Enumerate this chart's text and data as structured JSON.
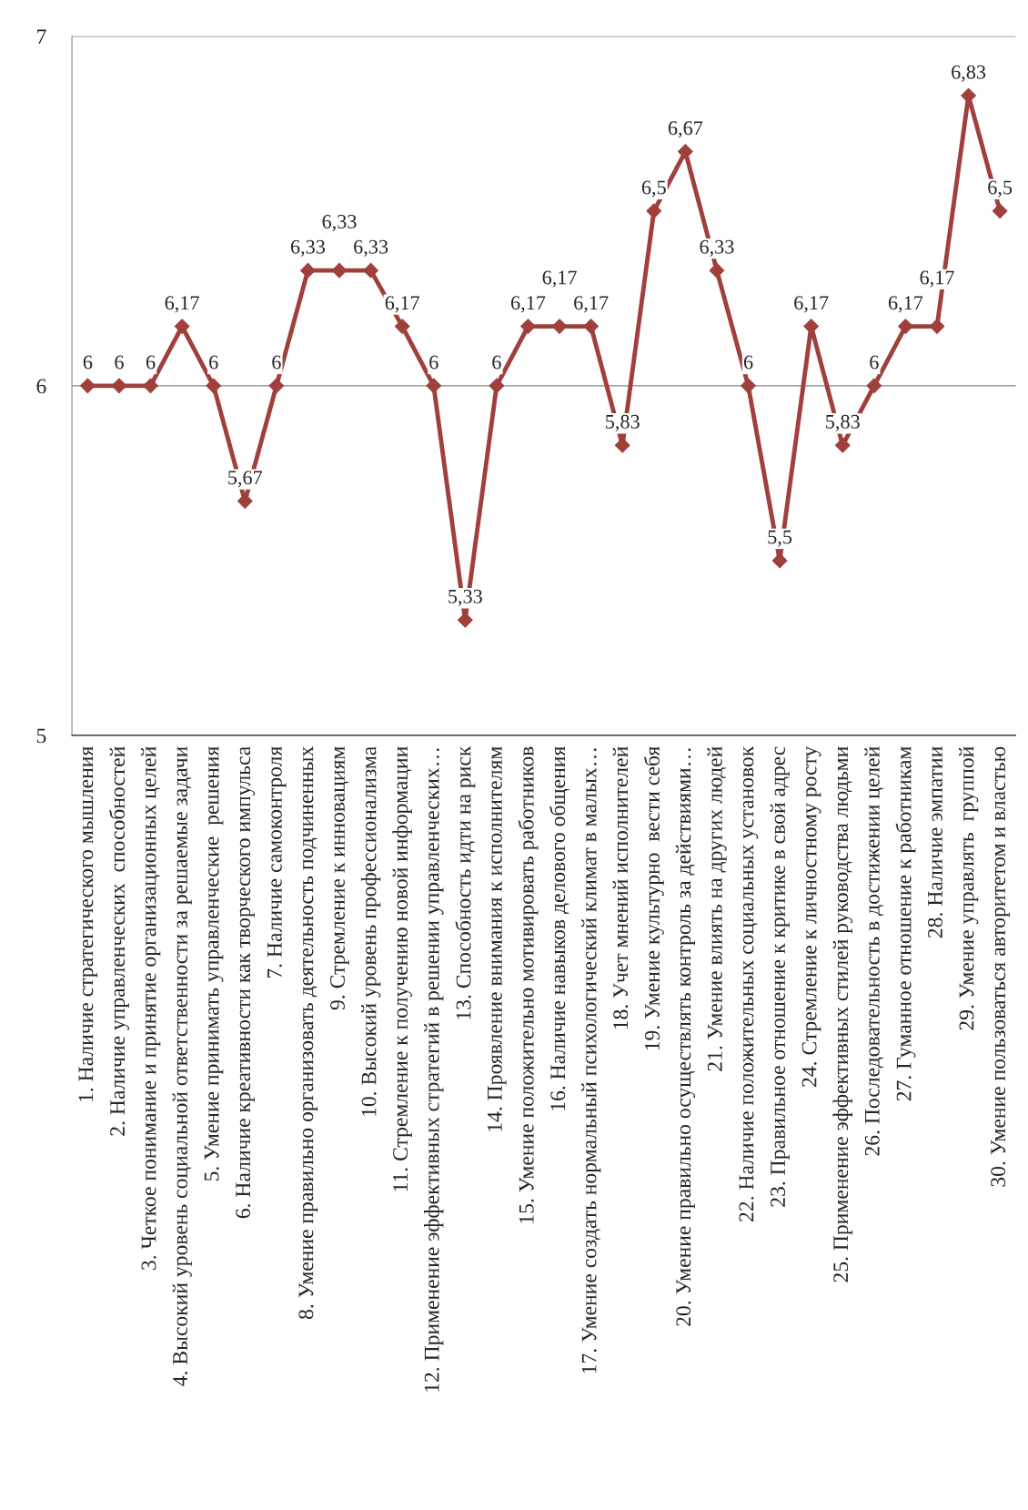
{
  "chart_data": {
    "type": "line",
    "categories": [
      "1. Наличие стратегического мышления",
      "2. Наличие управленческих  способностей",
      "3. Четкое понимание и принятие организационных целей",
      "4. Высокий уровень социальной ответственности за решаемые задачи",
      "5. Умение принимать управленческие  решения",
      "6. Наличие креативности как творческого импульса",
      "7. Наличие самоконтроля",
      "8. Умение правильно организовать деятельность подчиненных",
      "9. Стремление к инновациям",
      "10. Высокий уровень профессионализма",
      "11. Стремление к получению новой информации",
      "12. Применение эффективных стратегий в решении управленческих…",
      "13. Способность идти на риск",
      "14. Проявление внимания к исполнителям",
      "15. Умение положительно мотивировать работников",
      "16. Наличие навыков делового общения",
      "17. Умение создать нормальный психологический климат в малых…",
      "18. Учет мнений исполнителей",
      "19. Умение культурно  вести себя",
      "20. Умение правильно осуществлять контроль за действиями…",
      "21. Умение влиять на других людей",
      "22. Наличие положительных социальных установок",
      "23. Правильное отношение к критике в свой адрес",
      "24. Стремление к личностному росту",
      "25. Применение эффективных стилей руководства людьми",
      "26. Последовательность в достижении целей",
      "27. Гуманное отношение к работникам",
      "28. Наличие эмпатии",
      "29. Умение управлять  группой",
      "30. Умение пользоваться авторитетом и властью"
    ],
    "series": [
      {
        "color": "#a0403c",
        "values": [
          6,
          6,
          6,
          6.17,
          6,
          5.67,
          6,
          6.33,
          6.33,
          6.33,
          6.17,
          6,
          5.33,
          6,
          6.17,
          6.17,
          6.17,
          5.83,
          6.5,
          6.67,
          6.33,
          6,
          5.5,
          6.17,
          5.83,
          6,
          6.17,
          6.17,
          6.83,
          6.5
        ],
        "value_labels": [
          "6",
          "6",
          "6",
          "6,17",
          "6",
          "5,67",
          "6",
          "6,33",
          "6,33",
          "6,33",
          "6,17",
          "6",
          "5,33",
          "6",
          "6,17",
          "6,17",
          "6,17",
          "5,83",
          "6,5",
          "6,67",
          "6,33",
          "6",
          "5,5",
          "6,17",
          "5,83",
          "6",
          "6,17",
          "6,17",
          "6,83",
          "6,5"
        ]
      }
    ],
    "ylim": [
      5,
      7
    ],
    "yticks": [
      5,
      6,
      7
    ],
    "grid": "y",
    "marker": "diamond",
    "line_style": "solid",
    "legend": false
  }
}
